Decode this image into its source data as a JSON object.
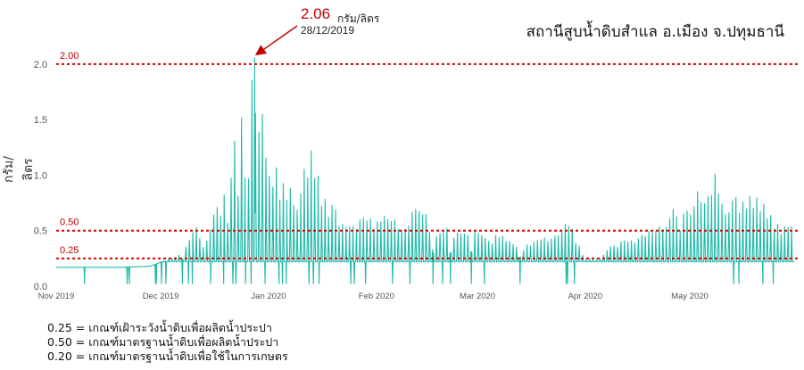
{
  "title": "สถานีสูบน้ำดิบสำแล อ.เมือง จ.ปทุมธานี",
  "peak_annotation": {
    "value": "2.06",
    "unit": "กรัม/ลิตร",
    "date": "28/12/2019"
  },
  "notes": [
    "0.25 = เกณฑ์เฝ้าระวังน้ำดิบเพื่อผลิตน้ำประปา",
    "0.50 = เกณฑ์มาตรฐานน้ำดิบเพื่อผลิตน้ำประปา",
    "0.20 = เกณฑ์มาตรฐานน้ำดิบเพื่อใช้ในการเกษตร"
  ],
  "colors": {
    "series": "#1fb9a8",
    "threshold": "#e00000",
    "threshold_label": "#c00000",
    "axis_text": "#555555"
  },
  "chart_data": {
    "type": "line",
    "title": "สถานีสูบน้ำดิบสำแล อ.เมือง จ.ปทุมธานี",
    "ylabel": "กรัม/ลิตร",
    "xlabel": "",
    "ylim": [
      0,
      2.2
    ],
    "xlim": [
      "2019-11-01",
      "2020-05-31"
    ],
    "yticks": [
      "0.0",
      "0.5",
      "1.0",
      "1.5",
      "2.0"
    ],
    "xticks": [
      {
        "date": "2019-11-01",
        "label": "Nov 2019"
      },
      {
        "date": "2019-12-01",
        "label": "Dec 2019"
      },
      {
        "date": "2020-01-01",
        "label": "Jan 2020"
      },
      {
        "date": "2020-02-01",
        "label": "Feb 2020"
      },
      {
        "date": "2020-03-01",
        "label": "Mar 2020"
      },
      {
        "date": "2020-04-01",
        "label": "Apr 2020"
      },
      {
        "date": "2020-05-01",
        "label": "May 2020"
      }
    ],
    "thresholds": [
      {
        "value": 2.0,
        "label": "2.00"
      },
      {
        "value": 0.5,
        "label": "0.50"
      },
      {
        "value": 0.25,
        "label": "0.25"
      }
    ],
    "grid": false,
    "series": [
      {
        "values": [
          [
            "2019-11-01",
            0.17
          ],
          [
            "2019-11-10",
            0.17
          ],
          [
            "2019-11-20",
            0.17
          ],
          [
            "2019-11-28",
            0.18
          ],
          [
            "2019-12-03",
            0.24
          ],
          [
            "2019-12-07",
            0.3
          ],
          [
            "2019-12-11",
            0.63
          ],
          [
            "2019-12-13",
            0.35
          ],
          [
            "2019-12-15",
            0.45
          ],
          [
            "2019-12-17",
            0.95
          ],
          [
            "2019-12-18",
            0.55
          ],
          [
            "2019-12-19",
            1.07
          ],
          [
            "2019-12-20",
            0.6
          ],
          [
            "2019-12-21",
            0.98
          ],
          [
            "2019-12-22",
            1.55
          ],
          [
            "2019-12-23",
            0.8
          ],
          [
            "2019-12-24",
            1.62
          ],
          [
            "2019-12-25",
            1.25
          ],
          [
            "2019-12-26",
            1.05
          ],
          [
            "2019-12-27",
            1.85
          ],
          [
            "2019-12-28",
            2.06
          ],
          [
            "2019-12-29",
            1.55
          ],
          [
            "2019-12-30",
            1.7
          ],
          [
            "2019-12-31",
            1.25
          ],
          [
            "2020-01-01",
            1.4
          ],
          [
            "2020-01-02",
            0.9
          ],
          [
            "2020-01-03",
            1.2
          ],
          [
            "2020-01-04",
            0.8
          ],
          [
            "2020-01-05",
            1.05
          ],
          [
            "2020-01-06",
            0.75
          ],
          [
            "2020-01-07",
            1.0
          ],
          [
            "2020-01-10",
            0.85
          ],
          [
            "2020-01-13",
            1.35
          ],
          [
            "2020-01-16",
            0.88
          ],
          [
            "2020-01-20",
            0.7
          ],
          [
            "2020-01-24",
            0.55
          ],
          [
            "2020-01-27",
            0.62
          ],
          [
            "2020-02-01",
            0.65
          ],
          [
            "2020-02-05",
            0.7
          ],
          [
            "2020-02-09",
            0.6
          ],
          [
            "2020-02-13",
            0.85
          ],
          [
            "2020-02-17",
            0.55
          ],
          [
            "2020-02-21",
            0.55
          ],
          [
            "2020-02-25",
            0.5
          ],
          [
            "2020-03-01",
            0.5
          ],
          [
            "2020-03-05",
            0.45
          ],
          [
            "2020-03-09",
            0.48
          ],
          [
            "2020-03-13",
            0.35
          ],
          [
            "2020-03-17",
            0.4
          ],
          [
            "2020-03-21",
            0.45
          ],
          [
            "2020-03-25",
            0.5
          ],
          [
            "2020-03-27",
            0.62
          ],
          [
            "2020-04-01",
            0.25
          ],
          [
            "2020-04-05",
            0.24
          ],
          [
            "2020-04-09",
            0.4
          ],
          [
            "2020-04-13",
            0.42
          ],
          [
            "2020-04-17",
            0.5
          ],
          [
            "2020-04-21",
            0.55
          ],
          [
            "2020-04-24",
            0.65
          ],
          [
            "2020-04-26",
            0.72
          ],
          [
            "2020-04-28",
            0.6
          ],
          [
            "2020-05-01",
            0.8
          ],
          [
            "2020-05-03",
            0.9
          ],
          [
            "2020-05-05",
            0.95
          ],
          [
            "2020-05-07",
            1.05
          ],
          [
            "2020-05-08",
            1.1
          ],
          [
            "2020-05-11",
            0.8
          ],
          [
            "2020-05-14",
            0.85
          ],
          [
            "2020-05-17",
            0.8
          ],
          [
            "2020-05-20",
            0.88
          ],
          [
            "2020-05-23",
            0.75
          ],
          [
            "2020-05-26",
            0.6
          ],
          [
            "2020-05-29",
            0.55
          ]
        ]
      }
    ]
  }
}
